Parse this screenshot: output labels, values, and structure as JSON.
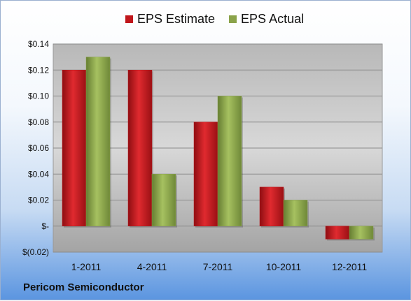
{
  "chart_data": {
    "type": "bar",
    "categories": [
      "1-2011",
      "4-2011",
      "7-2011",
      "10-2011",
      "12-2011"
    ],
    "series": [
      {
        "name": "EPS Estimate",
        "values": [
          0.12,
          0.12,
          0.08,
          0.03,
          -0.01
        ],
        "color": "#c0161b"
      },
      {
        "name": "EPS Actual",
        "values": [
          0.13,
          0.04,
          0.1,
          0.02,
          -0.01
        ],
        "color": "#8aa34a"
      }
    ],
    "ylim": [
      -0.02,
      0.14
    ],
    "yticks": [
      {
        "value": 0.14,
        "label": "$0.14"
      },
      {
        "value": 0.12,
        "label": "$0.12"
      },
      {
        "value": 0.1,
        "label": "$0.10"
      },
      {
        "value": 0.08,
        "label": "$0.08"
      },
      {
        "value": 0.06,
        "label": "$0.06"
      },
      {
        "value": 0.04,
        "label": "$0.04"
      },
      {
        "value": 0.02,
        "label": "$0.02"
      },
      {
        "value": 0.0,
        "label": "$-"
      },
      {
        "value": -0.02,
        "label": "$(0.02)"
      }
    ],
    "grid": true,
    "legend_position": "top-center",
    "footer": "Pericom Semiconductor"
  }
}
